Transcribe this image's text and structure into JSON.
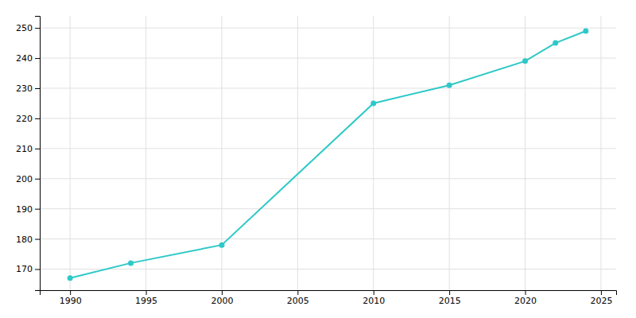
{
  "chart_data": {
    "type": "line",
    "x": [
      1990,
      1994,
      2000,
      2010,
      2015,
      2020,
      2022,
      2024
    ],
    "values": [
      167,
      172,
      178,
      225,
      231,
      239,
      245,
      249
    ],
    "color": "#2ec8c8",
    "marker": "circle",
    "xlim": [
      1988,
      2026
    ],
    "ylim": [
      163,
      254
    ],
    "xticks": [
      1990,
      1995,
      2000,
      2005,
      2010,
      2015,
      2020,
      2025
    ],
    "yticks": [
      170,
      180,
      190,
      200,
      210,
      220,
      230,
      240,
      250
    ],
    "grid": true
  }
}
